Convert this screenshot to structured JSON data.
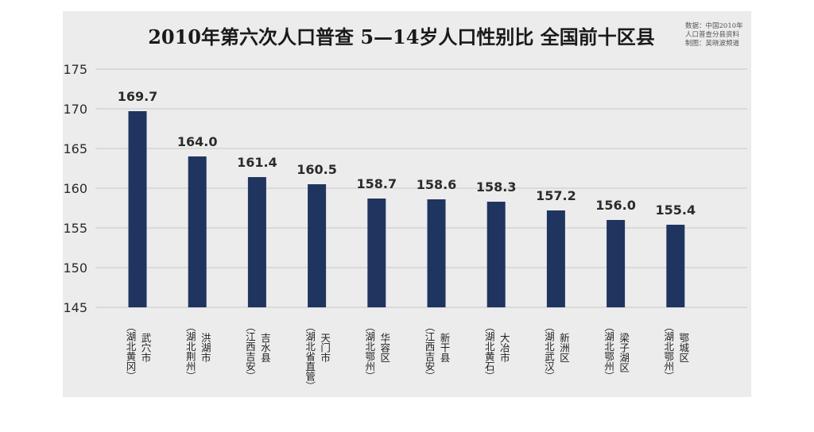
{
  "chart_data": {
    "type": "bar",
    "title": "2010年第六次人口普查 5—14岁人口性别比 全国前十区县",
    "source_lines": [
      "数据：中国2010年",
      "人口普查分县资料",
      "制图：吴晓波频道"
    ],
    "categories": [
      {
        "name": "武穴市",
        "province": "（湖北黄冈）"
      },
      {
        "name": "洪湖市",
        "province": "（湖北荆州）"
      },
      {
        "name": "吉水县",
        "province": "（江西吉安）"
      },
      {
        "name": "天门市",
        "province": "（湖北省直管）"
      },
      {
        "name": "华容区",
        "province": "（湖北鄂州）"
      },
      {
        "name": "新干县",
        "province": "（江西吉安）"
      },
      {
        "name": "大冶市",
        "province": "（湖北黄石）"
      },
      {
        "name": "新洲区",
        "province": "（湖北武汉）"
      },
      {
        "name": "梁子湖区",
        "province": "（湖北鄂州）"
      },
      {
        "name": "鄂城区",
        "province": "（湖北鄂州）"
      }
    ],
    "values": [
      169.7,
      164.0,
      161.4,
      160.5,
      158.7,
      158.6,
      158.3,
      157.2,
      156.0,
      155.4
    ],
    "value_labels": [
      "169.7",
      "164.0",
      "161.4",
      "160.5",
      "158.7",
      "158.6",
      "158.3",
      "157.2",
      "156.0",
      "155.4"
    ],
    "ylim": [
      145,
      175
    ],
    "yticks": [
      145,
      150,
      155,
      160,
      165,
      170,
      175
    ],
    "grid": true,
    "bar_color": "#1f3560"
  }
}
